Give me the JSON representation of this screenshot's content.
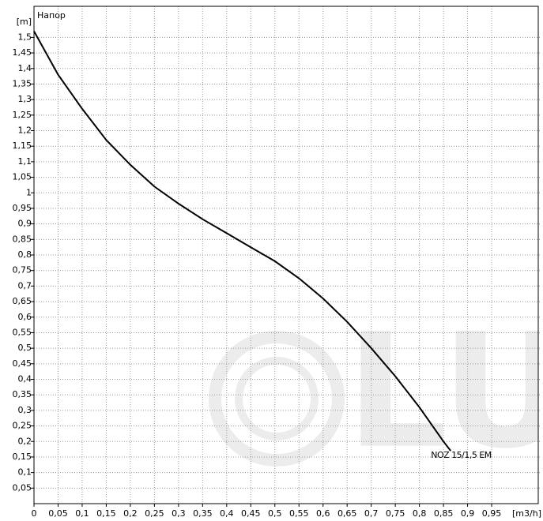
{
  "chart_data": {
    "type": "line",
    "title": "Напор",
    "y_label": "[m]",
    "x_label": "[m3/h]",
    "watermark": "LUN",
    "xlim": [
      0,
      1.05
    ],
    "ylim": [
      0,
      1.6
    ],
    "grid": true,
    "xticks": [
      0,
      {
        "value": 0.05,
        "label": "0,05"
      },
      {
        "value": 0.1,
        "label": "0,1"
      },
      {
        "value": 0.15,
        "label": "0,15"
      },
      {
        "value": 0.2,
        "label": "0,2"
      },
      {
        "value": 0.25,
        "label": "0,25"
      },
      {
        "value": 0.3,
        "label": "0,3"
      },
      {
        "value": 0.35,
        "label": "0,35"
      },
      {
        "value": 0.4,
        "label": "0,4"
      },
      {
        "value": 0.45,
        "label": "0,45"
      },
      {
        "value": 0.5,
        "label": "0,5"
      },
      {
        "value": 0.55,
        "label": "0,55"
      },
      {
        "value": 0.6,
        "label": "0,6"
      },
      {
        "value": 0.65,
        "label": "0,65"
      },
      {
        "value": 0.7,
        "label": "0,7"
      },
      {
        "value": 0.75,
        "label": "0,75"
      },
      {
        "value": 0.8,
        "label": "0,8"
      },
      {
        "value": 0.85,
        "label": "0,85"
      },
      {
        "value": 0.9,
        "label": "0,9"
      },
      {
        "value": 0.95,
        "label": "0,95"
      }
    ],
    "yticks": [
      {
        "value": 0.05,
        "label": "0,05"
      },
      {
        "value": 0.1,
        "label": "0,1"
      },
      {
        "value": 0.15,
        "label": "0,15"
      },
      {
        "value": 0.2,
        "label": "0,2"
      },
      {
        "value": 0.25,
        "label": "0,25"
      },
      {
        "value": 0.3,
        "label": "0,3"
      },
      {
        "value": 0.35,
        "label": "0,35"
      },
      {
        "value": 0.4,
        "label": "0,4"
      },
      {
        "value": 0.45,
        "label": "0,45"
      },
      {
        "value": 0.5,
        "label": "0,5"
      },
      {
        "value": 0.55,
        "label": "0,55"
      },
      {
        "value": 0.6,
        "label": "0,6"
      },
      {
        "value": 0.65,
        "label": "0,65"
      },
      {
        "value": 0.7,
        "label": "0,7"
      },
      {
        "value": 0.75,
        "label": "0,75"
      },
      {
        "value": 0.8,
        "label": "0,8"
      },
      {
        "value": 0.85,
        "label": "0,85"
      },
      {
        "value": 0.9,
        "label": "0,9"
      },
      {
        "value": 0.95,
        "label": "0,95"
      },
      1,
      {
        "value": 1.05,
        "label": "1,05"
      },
      {
        "value": 1.1,
        "label": "1,1"
      },
      {
        "value": 1.15,
        "label": "1,15"
      },
      {
        "value": 1.2,
        "label": "1,2"
      },
      {
        "value": 1.25,
        "label": "1,25"
      },
      {
        "value": 1.3,
        "label": "1,3"
      },
      {
        "value": 1.35,
        "label": "1,35"
      },
      {
        "value": 1.4,
        "label": "1,4"
      },
      {
        "value": 1.45,
        "label": "1,45"
      },
      {
        "value": 1.5,
        "label": "1,5"
      }
    ],
    "x": [
      0,
      0.05,
      0.1,
      0.15,
      0.2,
      0.25,
      0.3,
      0.35,
      0.4,
      0.45,
      0.5,
      0.55,
      0.6,
      0.65,
      0.7,
      0.75,
      0.8,
      0.85,
      0.865
    ],
    "series": [
      {
        "name": "NOZ 15/1,5 EM",
        "color": "#000000",
        "values": [
          1.52,
          1.38,
          1.27,
          1.17,
          1.09,
          1.02,
          0.965,
          0.915,
          0.87,
          0.825,
          0.78,
          0.725,
          0.66,
          0.585,
          0.5,
          0.41,
          0.31,
          0.2,
          0.17
        ]
      }
    ]
  }
}
